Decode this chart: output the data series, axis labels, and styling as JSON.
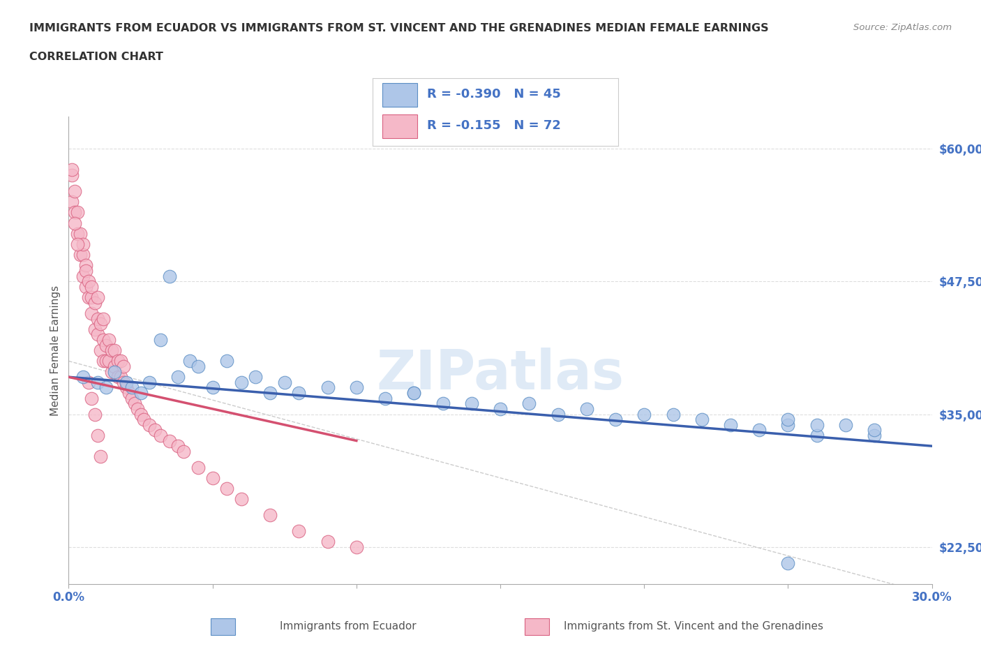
{
  "title_line1": "IMMIGRANTS FROM ECUADOR VS IMMIGRANTS FROM ST. VINCENT AND THE GRENADINES MEDIAN FEMALE EARNINGS",
  "title_line2": "CORRELATION CHART",
  "source": "Source: ZipAtlas.com",
  "ylabel": "Median Female Earnings",
  "xlim": [
    0,
    0.3
  ],
  "ylim": [
    19000,
    63000
  ],
  "yticks": [
    22500,
    35000,
    47500,
    60000
  ],
  "ytick_labels": [
    "$22,500",
    "$35,000",
    "$47,500",
    "$60,000"
  ],
  "xticks": [
    0.0,
    0.05,
    0.1,
    0.15,
    0.2,
    0.25,
    0.3
  ],
  "watermark": "ZIPatlas",
  "legend_r1": "-0.390",
  "legend_n1": "45",
  "legend_r2": "-0.155",
  "legend_n2": "72",
  "ecuador_color": "#aec6e8",
  "ecuador_edge": "#5b8ec4",
  "stvincent_color": "#f5b8c8",
  "stvincent_edge": "#d96080",
  "blue_line_color": "#3a5fad",
  "pink_line_color": "#d45070",
  "dashed_line_color": "#cccccc",
  "title_color": "#333333",
  "axis_label_color": "#555555",
  "tick_label_color": "#4472c4",
  "legend_text_color": "#4472c4",
  "background_color": "#ffffff",
  "ecuador_x": [
    0.005,
    0.01,
    0.013,
    0.016,
    0.02,
    0.022,
    0.025,
    0.028,
    0.032,
    0.035,
    0.038,
    0.042,
    0.045,
    0.05,
    0.055,
    0.06,
    0.065,
    0.07,
    0.075,
    0.08,
    0.09,
    0.1,
    0.11,
    0.12,
    0.13,
    0.14,
    0.15,
    0.16,
    0.17,
    0.18,
    0.19,
    0.2,
    0.21,
    0.22,
    0.23,
    0.24,
    0.25,
    0.26,
    0.27,
    0.28,
    0.25,
    0.26,
    0.12,
    0.25,
    0.28
  ],
  "ecuador_y": [
    38500,
    38000,
    37500,
    39000,
    38000,
    37500,
    37000,
    38000,
    42000,
    48000,
    38500,
    40000,
    39500,
    37500,
    40000,
    38000,
    38500,
    37000,
    38000,
    37000,
    37500,
    37500,
    36500,
    37000,
    36000,
    36000,
    35500,
    36000,
    35000,
    35500,
    34500,
    35000,
    35000,
    34500,
    34000,
    33500,
    34000,
    33000,
    34000,
    33000,
    34500,
    34000,
    37000,
    21000,
    33500
  ],
  "stvincent_x": [
    0.001,
    0.001,
    0.002,
    0.002,
    0.003,
    0.003,
    0.004,
    0.004,
    0.005,
    0.005,
    0.005,
    0.006,
    0.006,
    0.006,
    0.007,
    0.007,
    0.008,
    0.008,
    0.008,
    0.009,
    0.009,
    0.01,
    0.01,
    0.01,
    0.011,
    0.011,
    0.012,
    0.012,
    0.012,
    0.013,
    0.013,
    0.014,
    0.014,
    0.015,
    0.015,
    0.016,
    0.016,
    0.017,
    0.017,
    0.018,
    0.018,
    0.019,
    0.019,
    0.02,
    0.021,
    0.022,
    0.023,
    0.024,
    0.025,
    0.026,
    0.028,
    0.03,
    0.032,
    0.035,
    0.038,
    0.04,
    0.045,
    0.05,
    0.055,
    0.06,
    0.07,
    0.08,
    0.09,
    0.1,
    0.007,
    0.008,
    0.009,
    0.01,
    0.011,
    0.002,
    0.003,
    0.001
  ],
  "stvincent_y": [
    57500,
    55000,
    56000,
    54000,
    54000,
    52000,
    52000,
    50000,
    50000,
    51000,
    48000,
    49000,
    47000,
    48500,
    46000,
    47500,
    46000,
    44500,
    47000,
    43000,
    45500,
    44000,
    42500,
    46000,
    41000,
    43500,
    40000,
    42000,
    44000,
    40000,
    41500,
    40000,
    42000,
    39000,
    41000,
    39500,
    41000,
    38500,
    40000,
    38500,
    40000,
    38000,
    39500,
    37500,
    37000,
    36500,
    36000,
    35500,
    35000,
    34500,
    34000,
    33500,
    33000,
    32500,
    32000,
    31500,
    30000,
    29000,
    28000,
    27000,
    25500,
    24000,
    23000,
    22500,
    38000,
    36500,
    35000,
    33000,
    31000,
    53000,
    51000,
    58000
  ]
}
